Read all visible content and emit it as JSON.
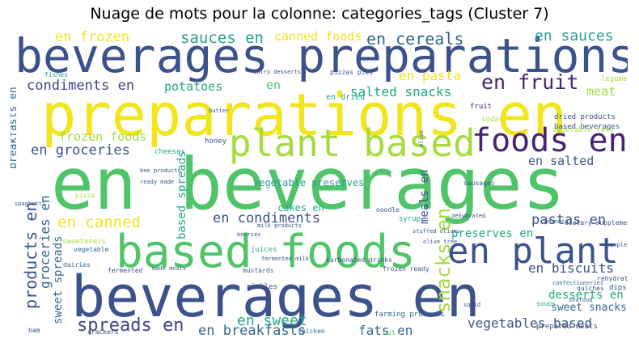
{
  "title": "Nuage de mots pour la colonne: categories_tags (Cluster 7)",
  "colors": {
    "yellow": "#f2e51d",
    "lime": "#a6db3e",
    "green": "#4fc469",
    "teal": "#22a884",
    "cyan": "#2a9d8e",
    "blue": "#31688e",
    "indigo": "#3b528b",
    "navy": "#414487",
    "purple": "#482374"
  },
  "words": [
    {
      "id": "w0",
      "text": "beverages preparations"
    },
    {
      "id": "w1",
      "text": "preparations en"
    },
    {
      "id": "w2",
      "text": "en beverages"
    },
    {
      "id": "w3",
      "text": "beverages en"
    },
    {
      "id": "w4",
      "text": "based foods"
    },
    {
      "id": "w5",
      "text": "plant based"
    },
    {
      "id": "w6",
      "text": "foods en"
    },
    {
      "id": "w7",
      "text": "en plant"
    },
    {
      "id": "w8",
      "text": "en fruit"
    },
    {
      "id": "w9",
      "text": "en cereals"
    },
    {
      "id": "w10",
      "text": "en sauces"
    },
    {
      "id": "w11",
      "text": "sauces en"
    },
    {
      "id": "w12",
      "text": "canned foods"
    },
    {
      "id": "w13",
      "text": "en frozen"
    },
    {
      "id": "w14",
      "text": "condiments en"
    },
    {
      "id": "w15",
      "text": "potatoes"
    },
    {
      "id": "w16",
      "text": "en"
    },
    {
      "id": "w17",
      "text": "en pasta"
    },
    {
      "id": "w18",
      "text": "salted snacks"
    },
    {
      "id": "w19",
      "text": "meat"
    },
    {
      "id": "w20",
      "text": "frozen foods"
    },
    {
      "id": "w21",
      "text": "en groceries"
    },
    {
      "id": "w22",
      "text": "en salted"
    },
    {
      "id": "w23",
      "text": "en canned"
    },
    {
      "id": "w24",
      "text": "en condiments"
    },
    {
      "id": "w25",
      "text": "pastas en"
    },
    {
      "id": "w26",
      "text": "preserves en"
    },
    {
      "id": "w27",
      "text": "en biscuits"
    },
    {
      "id": "w28",
      "text": "spreads en"
    },
    {
      "id": "w29",
      "text": "en sweet"
    },
    {
      "id": "w30",
      "text": "en breakfasts"
    },
    {
      "id": "w31",
      "text": "fats en"
    },
    {
      "id": "w32",
      "text": "vegetables based"
    },
    {
      "id": "w33",
      "text": "desserts en"
    },
    {
      "id": "w34",
      "text": "sweet snacks"
    },
    {
      "id": "w35",
      "text": "vegetable preserves"
    },
    {
      "id": "w36",
      "text": "cakes en"
    },
    {
      "id": "w37",
      "text": "breakfasts en"
    },
    {
      "id": "w38",
      "text": "products en"
    },
    {
      "id": "w39",
      "text": "groceries en"
    },
    {
      "id": "w40",
      "text": "sweet spreads"
    },
    {
      "id": "w41",
      "text": "based spreads"
    },
    {
      "id": "w42",
      "text": "snacks en"
    },
    {
      "id": "w43",
      "text": "meals en"
    },
    {
      "id": "w44",
      "text": "en dried"
    },
    {
      "id": "w45",
      "text": "legume"
    },
    {
      "id": "w46",
      "text": "vegetable fats"
    },
    {
      "id": "w47",
      "text": "dried products"
    },
    {
      "id": "w48",
      "text": "based beverages"
    },
    {
      "id": "w49",
      "text": "fruit"
    },
    {
      "id": "w50",
      "text": "sodas"
    },
    {
      "id": "w51",
      "text": "honey"
    },
    {
      "id": "w52",
      "text": "cheeses"
    },
    {
      "id": "w53",
      "text": "sausages"
    },
    {
      "id": "w54",
      "text": "pizza"
    },
    {
      "id": "w55",
      "text": "sweeteners"
    },
    {
      "id": "w56",
      "text": "vegetable"
    },
    {
      "id": "w57",
      "text": "dairies"
    },
    {
      "id": "w58",
      "text": "fermented"
    },
    {
      "id": "w59",
      "text": "juices"
    },
    {
      "id": "w60",
      "text": "pickles"
    },
    {
      "id": "w61",
      "text": "mustards"
    },
    {
      "id": "w62",
      "text": "noodle"
    },
    {
      "id": "w63",
      "text": "syrup"
    },
    {
      "id": "w64",
      "text": "dips"
    },
    {
      "id": "w65",
      "text": "soups"
    },
    {
      "id": "w66",
      "text": "quiches"
    },
    {
      "id": "w67",
      "text": "rehydrated"
    },
    {
      "id": "w68",
      "text": "confectioneries"
    },
    {
      "id": "w69",
      "text": "dietary supplements"
    },
    {
      "id": "w70",
      "text": "peanut"
    },
    {
      "id": "w71",
      "text": "prepared meats"
    },
    {
      "id": "w72",
      "text": "farming products"
    },
    {
      "id": "w73",
      "text": "nut"
    },
    {
      "id": "w74",
      "text": "crackers"
    },
    {
      "id": "w75",
      "text": "chicken"
    },
    {
      "id": "w76",
      "text": "ham"
    },
    {
      "id": "w77",
      "text": "carbonated drinks"
    },
    {
      "id": "w78",
      "text": "fermented milk"
    },
    {
      "id": "w79",
      "text": "made meals"
    },
    {
      "id": "w80",
      "text": "frozen ready"
    },
    {
      "id": "w81",
      "text": "milk products"
    },
    {
      "id": "w82",
      "text": "pizzas pies"
    },
    {
      "id": "w83",
      "text": "fishes"
    },
    {
      "id": "w84",
      "text": "dairy desserts"
    },
    {
      "id": "w85",
      "text": "ready made"
    },
    {
      "id": "w86",
      "text": "bee products"
    },
    {
      "id": "w87",
      "text": "spaghetti"
    },
    {
      "id": "w88",
      "text": "seafood"
    },
    {
      "id": "w89",
      "text": "stuffed olives"
    },
    {
      "id": "w90",
      "text": "olive tree"
    },
    {
      "id": "w91",
      "text": "simple syrup"
    },
    {
      "id": "w92",
      "text": "berries"
    },
    {
      "id": "w93",
      "text": "butter"
    },
    {
      "id": "w94",
      "text": "olive"
    },
    {
      "id": "w95",
      "text": "dehydrated"
    },
    {
      "id": "w96",
      "text": "squid"
    }
  ]
}
